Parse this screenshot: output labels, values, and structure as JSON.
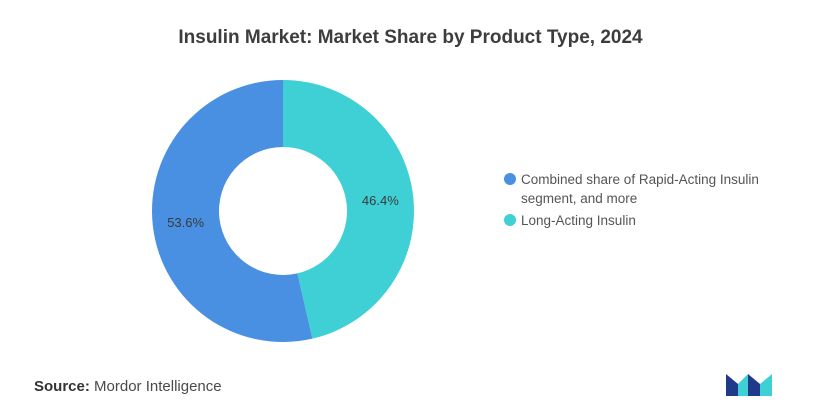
{
  "chart_data": {
    "type": "pie",
    "title": "Insulin Market: Market Share by Product Type, 2024",
    "donut": true,
    "slices": [
      {
        "label": "Long-Acting Insulin",
        "value": 46.4,
        "value_label": "46.4%",
        "color": "#3fd0d6"
      },
      {
        "label": "Combined share of Rapid-Acting Insulin segment, and more",
        "value": 53.6,
        "value_label": "53.6%",
        "color": "#4a90e2"
      }
    ],
    "legend": [
      {
        "line1": "Combined share of Rapid-Acting Insulin",
        "line2": "segment, and more",
        "color": "#4a90e2"
      },
      {
        "line1": "Long-Acting Insulin",
        "line2": "",
        "color": "#3fd0d6"
      }
    ],
    "legend_position": "right"
  },
  "footer": {
    "source_label": "Source:",
    "source_value": "Mordor Intelligence"
  },
  "logo": {
    "icon": "mordor-intelligence-logo-icon",
    "colors": [
      "#1f3a8a",
      "#3fd0d6"
    ]
  }
}
